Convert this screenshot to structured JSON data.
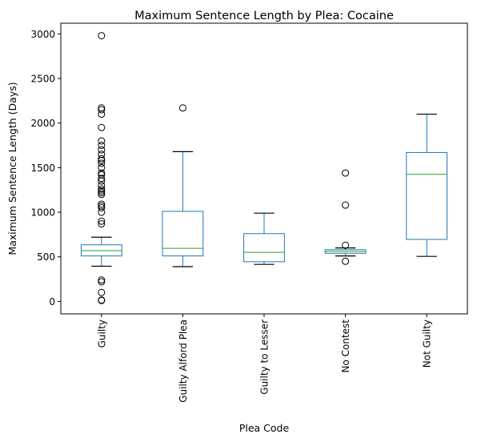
{
  "chart_data": {
    "type": "box",
    "title": "Maximum Sentence Length by Plea: Cocaine",
    "xlabel": "Plea Code",
    "ylabel": "Maximum Sentence Length (Days)",
    "ylim": [
      -140,
      3120
    ],
    "yticks": [
      0,
      500,
      1000,
      1500,
      2000,
      2500,
      3000
    ],
    "grid": false,
    "categories": [
      "Guilty",
      "Guilty Alford Plea",
      "Guilty to Lesser",
      "No Contest",
      "Not Guilty"
    ],
    "boxes": [
      {
        "category": "Guilty",
        "whisker_low": 395,
        "q1": 510,
        "median": 570,
        "q3": 635,
        "whisker_high": 720,
        "outliers": [
          10,
          15,
          100,
          220,
          240,
          870,
          900,
          1000,
          1050,
          1070,
          1090,
          1200,
          1220,
          1240,
          1260,
          1300,
          1350,
          1380,
          1420,
          1440,
          1500,
          1550,
          1580,
          1600,
          1650,
          1700,
          1750,
          1800,
          1950,
          2100,
          2150,
          2170,
          2980
        ]
      },
      {
        "category": "Guilty Alford Plea",
        "whisker_low": 390,
        "q1": 510,
        "median": 595,
        "q3": 1010,
        "whisker_high": 1680,
        "outliers": [
          2170
        ]
      },
      {
        "category": "Guilty to Lesser",
        "whisker_low": 415,
        "q1": 445,
        "median": 550,
        "q3": 760,
        "whisker_high": 990,
        "outliers": []
      },
      {
        "category": "No Contest",
        "whisker_low": 510,
        "q1": 540,
        "median": 560,
        "q3": 580,
        "whisker_high": 600,
        "outliers": [
          450,
          630,
          1080,
          1440
        ]
      },
      {
        "category": "Not Guilty",
        "whisker_low": 505,
        "q1": 695,
        "median": 1425,
        "q3": 1670,
        "whisker_high": 2100,
        "outliers": []
      }
    ],
    "colors": {
      "box": "#1f77b4",
      "median": "#2ca02c",
      "whisker": "#000000",
      "outlier": "#000000"
    }
  }
}
